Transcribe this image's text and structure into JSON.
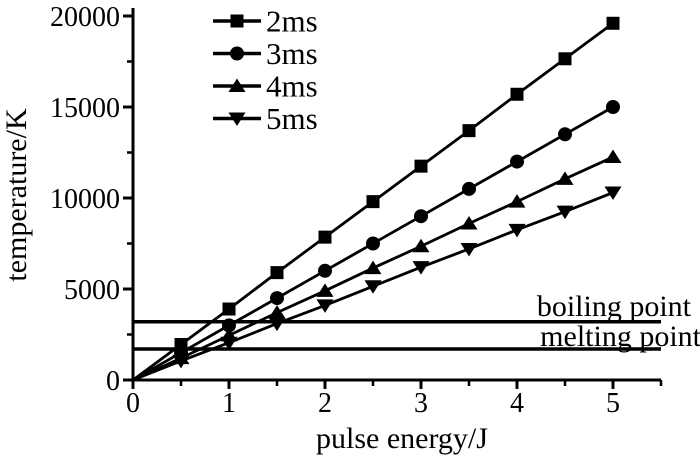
{
  "figure": {
    "background": "#ffffff",
    "ink_color": "#000000"
  },
  "chart_data": {
    "type": "line",
    "title": "",
    "xlabel": "pulse energy/J",
    "ylabel": "temperature/K",
    "xlim": [
      0,
      5.5
    ],
    "ylim": [
      0,
      20000
    ],
    "grid": false,
    "legend_position": "top-left-inside",
    "x_major_ticks": [
      0,
      1,
      2,
      3,
      4,
      5
    ],
    "x_tick_labels": [
      "0",
      "1",
      "2",
      "3",
      "4",
      "5"
    ],
    "x_minor_ticks": [
      0.5,
      1.5,
      2.5,
      3.5,
      4.5,
      5.5
    ],
    "y_major_ticks": [
      0,
      5000,
      10000,
      15000,
      20000
    ],
    "y_tick_labels": [
      "0",
      "5000",
      "10000",
      "15000",
      "20000"
    ],
    "y_minor_ticks": [
      2500,
      7500,
      12500,
      17500
    ],
    "x": [
      0,
      0.5,
      1,
      1.5,
      2,
      2.5,
      3,
      3.5,
      4,
      4.5,
      5
    ],
    "markers_start_index": 1,
    "series": [
      {
        "name": "2ms",
        "marker": "square",
        "values": [
          0,
          1950,
          3900,
          5900,
          7850,
          9800,
          11750,
          13700,
          15700,
          17650,
          19600
        ]
      },
      {
        "name": "3ms",
        "marker": "circle",
        "values": [
          0,
          1500,
          3000,
          4500,
          6000,
          7500,
          9000,
          10500,
          12000,
          13500,
          15000
        ]
      },
      {
        "name": "4ms",
        "marker": "triangle-up",
        "values": [
          0,
          1200,
          2450,
          3700,
          4900,
          6150,
          7350,
          8600,
          9800,
          11050,
          12250
        ]
      },
      {
        "name": "5ms",
        "marker": "triangle-down",
        "values": [
          0,
          1050,
          2050,
          3100,
          4100,
          5150,
          6200,
          7200,
          8250,
          9250,
          10300
        ]
      }
    ],
    "reference_lines": [
      {
        "label": "boiling point",
        "value": 3200
      },
      {
        "label": "melting point",
        "value": 1700
      }
    ]
  }
}
